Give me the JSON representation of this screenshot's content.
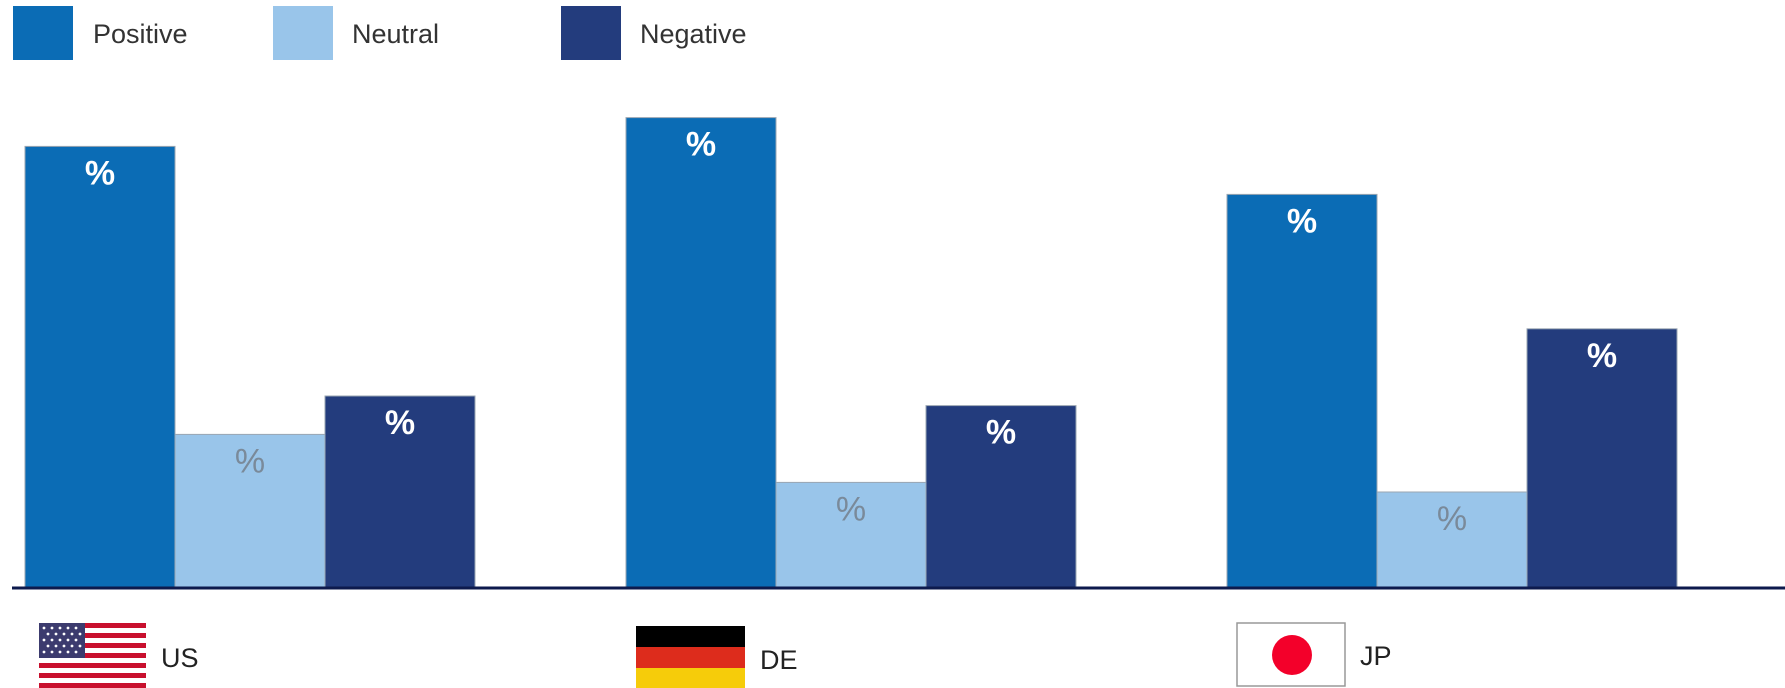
{
  "chart_data": {
    "type": "bar",
    "categories": [
      "US",
      "DE",
      "JP"
    ],
    "category_icons": [
      "us-flag-icon",
      "de-flag-icon",
      "jp-flag-icon"
    ],
    "series": [
      {
        "name": "Positive",
        "color": "#0b6cb5",
        "label_color": "#ffffff",
        "values": [
          46,
          49,
          41
        ],
        "labels": [
          "%",
          "%",
          "%"
        ]
      },
      {
        "name": "Neutral",
        "color": "#99c5ea",
        "label_color": "#7a8a9a",
        "values": [
          16,
          11,
          10
        ],
        "labels": [
          "%",
          "%",
          "%"
        ]
      },
      {
        "name": "Negative",
        "color": "#233c7d",
        "label_color": "#ffffff",
        "values": [
          20,
          19,
          27
        ],
        "labels": [
          "%",
          "%",
          "%"
        ]
      }
    ],
    "legend_position": "top-left",
    "grid": false,
    "axis_color": "#0d1a4d",
    "ylim": [
      0,
      55
    ]
  }
}
